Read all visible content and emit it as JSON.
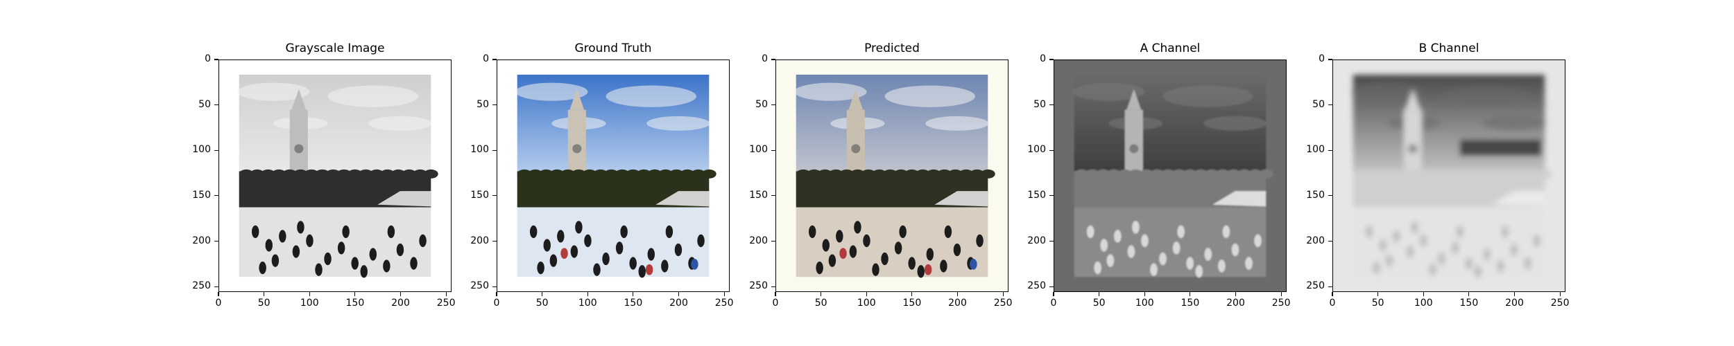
{
  "chart_data": [
    {
      "type": "image",
      "title": "Grayscale Image",
      "render": "grayscale",
      "colors": {
        "sky_top": "#cfcfcf",
        "sky_bottom": "#e9e9e9",
        "ground": "#e2e2e2",
        "tower": "#bdbdbd",
        "trees": "#2e2e2e",
        "border": "#ffffff"
      },
      "xlim": [
        0,
        256
      ],
      "ylim": [
        256,
        0
      ],
      "xticks": [
        0,
        50,
        100,
        150,
        200,
        250
      ],
      "yticks": [
        0,
        50,
        100,
        150,
        200,
        250
      ],
      "xtick_labels": [
        "0",
        "50",
        "100",
        "150",
        "200",
        "250"
      ],
      "ytick_labels": [
        "0",
        "50",
        "100",
        "150",
        "200",
        "250"
      ]
    },
    {
      "type": "image",
      "title": "Ground Truth",
      "render": "color",
      "colors": {
        "sky_top": "#3d74c9",
        "sky_bottom": "#b9d0ee",
        "ground": "#dde6f1",
        "tower": "#c9c2b5",
        "trees": "#29331f",
        "border": "#ffffff"
      },
      "xlim": [
        0,
        256
      ],
      "ylim": [
        256,
        0
      ],
      "xticks": [
        0,
        50,
        100,
        150,
        200,
        250
      ],
      "yticks": [
        0,
        50,
        100,
        150,
        200,
        250
      ],
      "xtick_labels": [
        "0",
        "50",
        "100",
        "150",
        "200",
        "250"
      ],
      "ytick_labels": [
        "0",
        "50",
        "100",
        "150",
        "200",
        "250"
      ]
    },
    {
      "type": "image",
      "title": "Predicted",
      "render": "color",
      "colors": {
        "sky_top": "#6e86b2",
        "sky_bottom": "#c4c6cf",
        "ground": "#d8cfc2",
        "tower": "#c8bfae",
        "trees": "#2d3022",
        "border": "#fbfaef"
      },
      "xlim": [
        0,
        256
      ],
      "ylim": [
        256,
        0
      ],
      "xticks": [
        0,
        50,
        100,
        150,
        200,
        250
      ],
      "yticks": [
        0,
        50,
        100,
        150,
        200,
        250
      ],
      "xtick_labels": [
        "0",
        "50",
        "100",
        "150",
        "200",
        "250"
      ],
      "ytick_labels": [
        "0",
        "50",
        "100",
        "150",
        "200",
        "250"
      ]
    },
    {
      "type": "image",
      "title": "A Channel",
      "render": "channel-a",
      "colors": {
        "sky_top": "#6a6a6a",
        "sky_bottom": "#3c3c3c",
        "ground": "#8a8a8a",
        "tower": "#b4b4b4",
        "trees": "#7a7a7a",
        "border": "#6b6b6b"
      },
      "xlim": [
        0,
        256
      ],
      "ylim": [
        256,
        0
      ],
      "xticks": [
        0,
        50,
        100,
        150,
        200,
        250
      ],
      "yticks": [
        0,
        50,
        100,
        150,
        200,
        250
      ],
      "xtick_labels": [
        "0",
        "50",
        "100",
        "150",
        "200",
        "250"
      ],
      "ytick_labels": [
        "0",
        "50",
        "100",
        "150",
        "200",
        "250"
      ]
    },
    {
      "type": "image",
      "title": "B Channel",
      "render": "channel-b",
      "colors": {
        "sky_top": "#4a4a4a",
        "sky_bottom": "#c8c8c8",
        "ground": "#e4e4e4",
        "tower": "#d6d6d6",
        "trees": "#cfcfcf",
        "border": "#e6e6e6"
      },
      "xlim": [
        0,
        256
      ],
      "ylim": [
        256,
        0
      ],
      "xticks": [
        0,
        50,
        100,
        150,
        200,
        250
      ],
      "yticks": [
        0,
        50,
        100,
        150,
        200,
        250
      ],
      "xtick_labels": [
        "0",
        "50",
        "100",
        "150",
        "200",
        "250"
      ],
      "ytick_labels": [
        "0",
        "50",
        "100",
        "150",
        "200",
        "250"
      ]
    }
  ]
}
